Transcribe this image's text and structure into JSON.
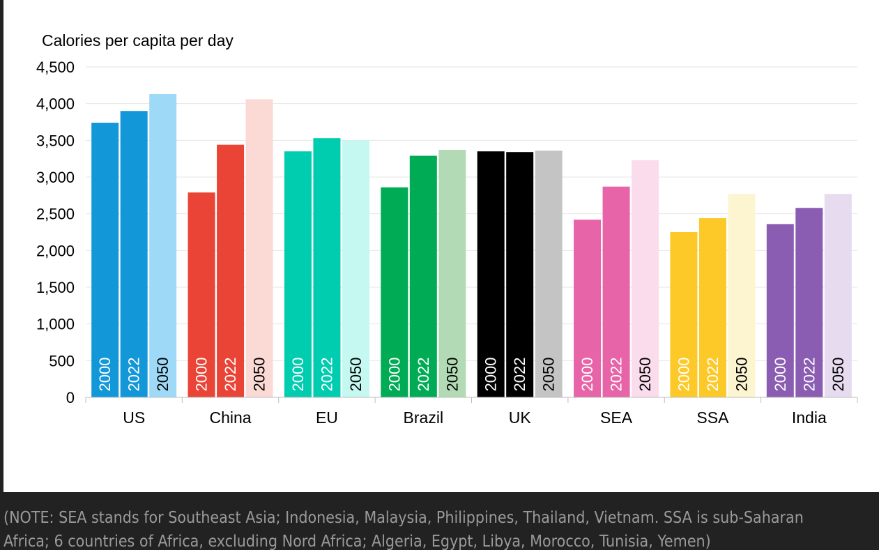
{
  "chart_data": {
    "type": "bar",
    "ylabel": "Calories per capita per day",
    "ylim": [
      0,
      4500
    ],
    "yticks": [
      0,
      500,
      1000,
      1500,
      2000,
      2500,
      3000,
      3500,
      4000,
      4500
    ],
    "ytick_labels": [
      "0",
      "500",
      "1,000",
      "1,500",
      "2,000",
      "2,500",
      "3,000",
      "3,500",
      "4,000",
      "4,500"
    ],
    "grid": true,
    "series_names": [
      "2000",
      "2022",
      "2050"
    ],
    "groups": [
      {
        "name": "US",
        "values": [
          3740,
          3900,
          4130
        ],
        "colors": [
          "#1297d8",
          "#1297d8",
          "#9ed9f7"
        ]
      },
      {
        "name": "China",
        "values": [
          2790,
          3440,
          4060
        ],
        "colors": [
          "#ea4437",
          "#ea4437",
          "#fbd9d4"
        ]
      },
      {
        "name": "EU",
        "values": [
          3350,
          3530,
          3500
        ],
        "colors": [
          "#00cdb0",
          "#00cdb0",
          "#c5f8f0"
        ]
      },
      {
        "name": "Brazil",
        "values": [
          2860,
          3290,
          3370
        ],
        "colors": [
          "#00ab55",
          "#00ab55",
          "#b2dab4"
        ]
      },
      {
        "name": "UK",
        "values": [
          3350,
          3340,
          3360
        ],
        "colors": [
          "#000000",
          "#000000",
          "#c4c4c4"
        ]
      },
      {
        "name": "SEA",
        "values": [
          2420,
          2870,
          3230
        ],
        "colors": [
          "#e764a8",
          "#e764a8",
          "#fbdcec"
        ]
      },
      {
        "name": "SSA",
        "values": [
          2250,
          2440,
          2770
        ],
        "colors": [
          "#fdc928",
          "#fdc928",
          "#fdf4d0"
        ]
      },
      {
        "name": "India",
        "values": [
          2360,
          2580,
          2770
        ],
        "colors": [
          "#8a5db3",
          "#8a5db3",
          "#e6dbef"
        ]
      }
    ]
  },
  "note": {
    "line1": "(NOTE: SEA stands for Southeast Asia; Indonesia, Malaysia, Philippines, Thailand, Vietnam. SSA is sub-Saharan",
    "line2": "Africa; 6 countries of Africa, excluding Nord Africa; Algeria, Egypt, Libya, Morocco, Tunisia, Yemen)"
  }
}
